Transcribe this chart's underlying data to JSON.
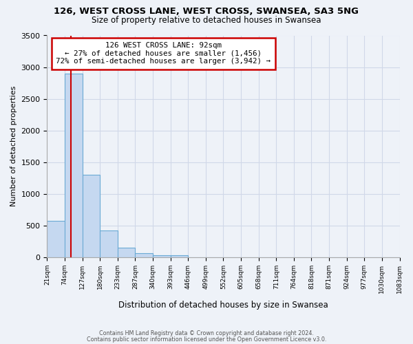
{
  "title": "126, WEST CROSS LANE, WEST CROSS, SWANSEA, SA3 5NG",
  "subtitle": "Size of property relative to detached houses in Swansea",
  "xlabel": "Distribution of detached houses by size in Swansea",
  "ylabel": "Number of detached properties",
  "bin_labels": [
    "21sqm",
    "74sqm",
    "127sqm",
    "180sqm",
    "233sqm",
    "287sqm",
    "340sqm",
    "393sqm",
    "446sqm",
    "499sqm",
    "552sqm",
    "605sqm",
    "658sqm",
    "711sqm",
    "764sqm",
    "818sqm",
    "871sqm",
    "924sqm",
    "977sqm",
    "1030sqm",
    "1083sqm"
  ],
  "bar_heights": [
    575,
    2900,
    1300,
    420,
    155,
    70,
    35,
    30,
    0,
    0,
    0,
    0,
    0,
    0,
    0,
    0,
    0,
    0,
    0,
    0
  ],
  "bar_color": "#c5d8f0",
  "bar_edge_color": "#6aaad4",
  "property_line_color": "#cc0000",
  "property_line_x": 1.35,
  "annotation_line1": "126 WEST CROSS LANE: 92sqm",
  "annotation_line2": "← 27% of detached houses are smaller (1,456)",
  "annotation_line3": "72% of semi-detached houses are larger (3,942) →",
  "annotation_box_color": "#ffffff",
  "annotation_box_edge": "#cc0000",
  "ylim": [
    0,
    3500
  ],
  "yticks": [
    0,
    500,
    1000,
    1500,
    2000,
    2500,
    3000,
    3500
  ],
  "footnote1": "Contains HM Land Registry data © Crown copyright and database right 2024.",
  "footnote2": "Contains public sector information licensed under the Open Government Licence v3.0.",
  "background_color": "#eef2f8",
  "grid_color": "#d0d8e8",
  "title_fontsize": 9.5,
  "subtitle_fontsize": 8.5
}
